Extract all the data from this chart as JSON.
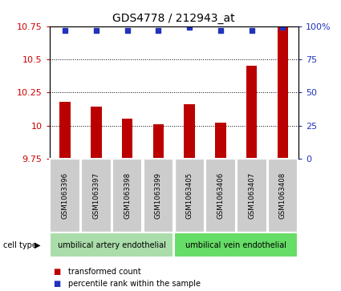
{
  "title": "GDS4778 / 212943_at",
  "samples": [
    "GSM1063396",
    "GSM1063397",
    "GSM1063398",
    "GSM1063399",
    "GSM1063405",
    "GSM1063406",
    "GSM1063407",
    "GSM1063408"
  ],
  "bar_values": [
    10.18,
    10.14,
    10.05,
    10.01,
    10.16,
    10.02,
    10.45,
    10.76
  ],
  "percentile_values": [
    97,
    97,
    97,
    97,
    99,
    97,
    97,
    99
  ],
  "ylim_left": [
    9.75,
    10.75
  ],
  "ylim_right": [
    0,
    100
  ],
  "yticks_left": [
    9.75,
    10.0,
    10.25,
    10.5,
    10.75
  ],
  "ytick_labels_left": [
    "9.75",
    "10",
    "10.25",
    "10.5",
    "10.75"
  ],
  "yticks_right": [
    0,
    25,
    50,
    75,
    100
  ],
  "ytick_labels_right": [
    "0",
    "25",
    "50",
    "75",
    "100%"
  ],
  "bar_color": "#bb0000",
  "dot_color": "#2233bb",
  "bar_width": 0.35,
  "cell_type_labels": [
    "umbilical artery endothelial",
    "umbilical vein endothelial"
  ],
  "cell_type_group_counts": [
    4,
    4
  ],
  "cell_type_color_left": "#aaddaa",
  "cell_type_color_right": "#66dd66",
  "background_color": "#ffffff",
  "tick_color_left": "#cc0000",
  "tick_color_right": "#2233bb",
  "bar_bottom": 9.75,
  "sample_box_color": "#cccccc",
  "legend_red_label": "transformed count",
  "legend_blue_label": "percentile rank within the sample",
  "cell_type_header": "cell type",
  "arrow_char": "▶"
}
